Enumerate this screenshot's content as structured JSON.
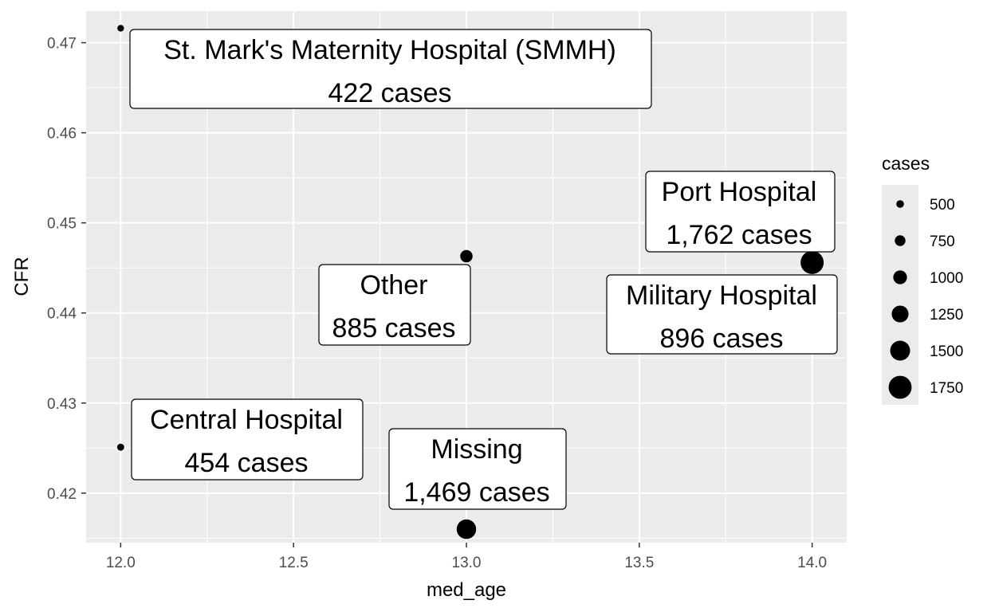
{
  "chart_data": {
    "type": "scatter",
    "xlabel": "med_age",
    "ylabel": "CFR",
    "xlim": [
      11.9,
      14.1
    ],
    "ylim": [
      0.4145,
      0.4735
    ],
    "x_ticks": [
      "12.0",
      "12.5",
      "13.0",
      "13.5",
      "14.0"
    ],
    "x_tick_values": [
      12.0,
      12.5,
      13.0,
      13.5,
      14.0
    ],
    "y_ticks": [
      "0.42",
      "0.43",
      "0.44",
      "0.45",
      "0.46",
      "0.47"
    ],
    "y_tick_values": [
      0.42,
      0.43,
      0.44,
      0.45,
      0.46,
      0.47
    ],
    "grid": true,
    "background": "#ebebeb",
    "point_color": "#000000",
    "size_variable": "cases",
    "points": [
      {
        "hospital": "St. Mark's Maternity Hospital (SMMH)",
        "med_age": 12.0,
        "CFR": 0.4716,
        "cases": 422,
        "cases_label": "422 cases"
      },
      {
        "hospital": "Central Hospital",
        "med_age": 12.0,
        "CFR": 0.4251,
        "cases": 454,
        "cases_label": "454 cases"
      },
      {
        "hospital": "Other",
        "med_age": 13.0,
        "CFR": 0.4463,
        "cases": 885,
        "cases_label": "885 cases"
      },
      {
        "hospital": "Missing",
        "med_age": 13.0,
        "CFR": 0.416,
        "cases": 1469,
        "cases_label": "1,469 cases"
      },
      {
        "hospital": "Port Hospital",
        "med_age": 14.0,
        "CFR": 0.4456,
        "cases": 1762,
        "cases_label": "1,762 cases"
      },
      {
        "hospital": "Military Hospital",
        "med_age": 14.0,
        "CFR": 0.4453,
        "cases": 896,
        "cases_label": "896 cases"
      }
    ],
    "legend": {
      "title": "cases",
      "position": "right",
      "entries": [
        {
          "label": "500",
          "value": 500
        },
        {
          "label": "750",
          "value": 750
        },
        {
          "label": "1000",
          "value": 1000
        },
        {
          "label": "1250",
          "value": 1250
        },
        {
          "label": "1500",
          "value": 1500
        },
        {
          "label": "1750",
          "value": 1750
        }
      ]
    }
  }
}
